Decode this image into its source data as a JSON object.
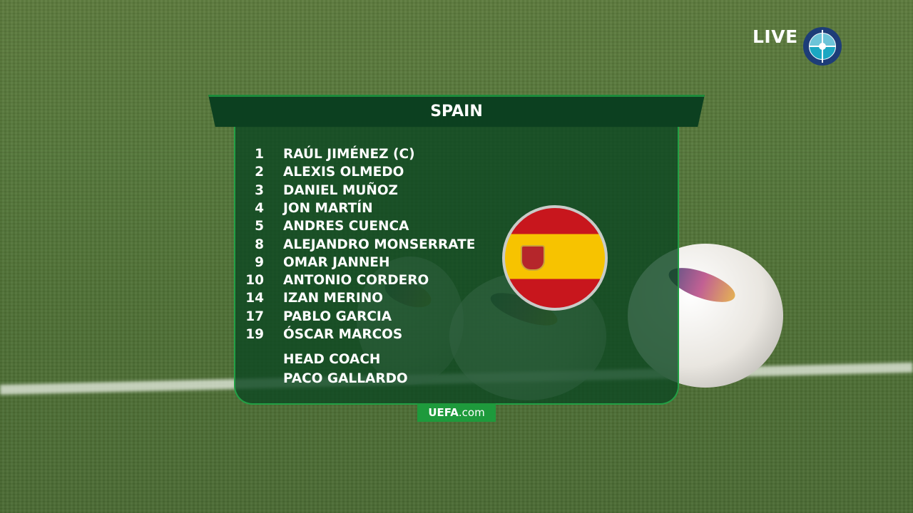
{
  "broadcast": {
    "live_label": "LIVE",
    "live_icon": "live-broadcast-icon"
  },
  "lineup": {
    "team": "SPAIN",
    "players": [
      {
        "number": "1",
        "name": "RAÚL JIMÉNEZ (C)"
      },
      {
        "number": "2",
        "name": "ALEXIS OLMEDO"
      },
      {
        "number": "3",
        "name": "DANIEL MUÑOZ"
      },
      {
        "number": "4",
        "name": "JON MARTÍN"
      },
      {
        "number": "5",
        "name": "ANDRES CUENCA"
      },
      {
        "number": "8",
        "name": "ALEJANDRO MONSERRATE"
      },
      {
        "number": "9",
        "name": "OMAR JANNEH"
      },
      {
        "number": "10",
        "name": "ANTONIO CORDERO"
      },
      {
        "number": "14",
        "name": "IZAN MERINO"
      },
      {
        "number": "17",
        "name": "PABLO GARCIA"
      },
      {
        "number": "19",
        "name": "ÓSCAR MARCOS"
      }
    ],
    "coach_label": "HEAD COACH",
    "coach_name": "PACO GALLARDO",
    "flag": "spain-flag",
    "footer_logo": "UEFA.com"
  },
  "colors": {
    "panel": "#0e4822",
    "border": "#22a045",
    "flag_red": "#c8161d",
    "flag_yellow": "#f7c300"
  }
}
